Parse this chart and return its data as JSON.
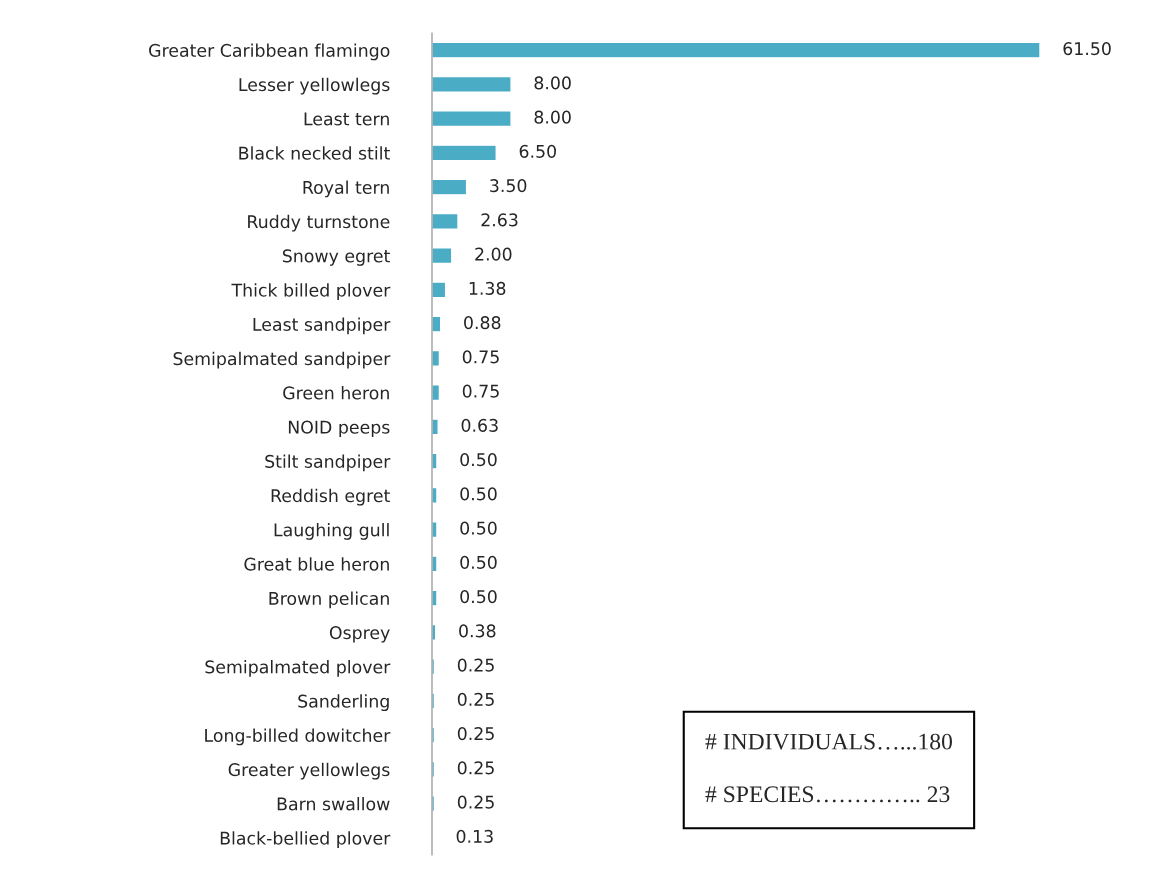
{
  "chart_data": {
    "type": "bar",
    "orientation": "horizontal",
    "categories": [
      "Greater Caribbean flamingo",
      "Lesser yellowlegs",
      "Least tern",
      "Black necked stilt",
      "Royal tern",
      "Ruddy turnstone",
      "Snowy egret",
      "Thick billed plover",
      "Least sandpiper",
      "Semipalmated sandpiper",
      "Green heron",
      "NOID peeps",
      "Stilt sandpiper",
      "Reddish egret",
      "Laughing gull",
      "Great blue heron",
      "Brown pelican",
      "Osprey",
      "Semipalmated plover",
      "Sanderling",
      "Long-billed dowitcher",
      "Greater yellowlegs",
      "Barn swallow",
      "Black-bellied plover"
    ],
    "values": [
      61.5,
      8.0,
      8.0,
      6.5,
      3.5,
      2.63,
      2.0,
      1.38,
      0.88,
      0.75,
      0.75,
      0.63,
      0.5,
      0.5,
      0.5,
      0.5,
      0.5,
      0.38,
      0.25,
      0.25,
      0.25,
      0.25,
      0.25,
      0.13
    ],
    "value_labels": [
      "61.50",
      "8.00",
      "8.00",
      "6.50",
      "3.50",
      "2.63",
      "2.00",
      "1.38",
      "0.88",
      "0.75",
      "0.75",
      "0.63",
      "0.50",
      "0.50",
      "0.50",
      "0.50",
      "0.50",
      "0.38",
      "0.25",
      "0.25",
      "0.25",
      "0.25",
      "0.25",
      "0.13"
    ],
    "color": "#4bacc6",
    "annotations": [
      "# INDIVIDUALS…...180",
      "# SPECIES………….. 23"
    ],
    "grid": false
  }
}
